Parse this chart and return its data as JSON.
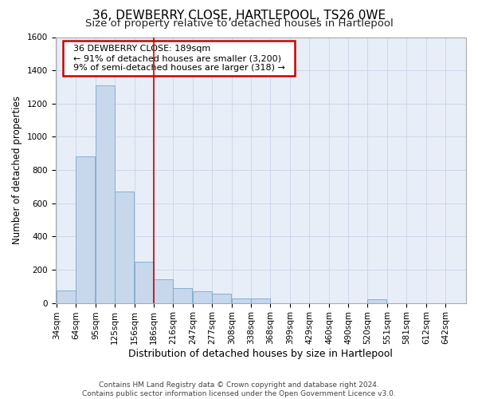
{
  "title": "36, DEWBERRY CLOSE, HARTLEPOOL, TS26 0WE",
  "subtitle": "Size of property relative to detached houses in Hartlepool",
  "xlabel": "Distribution of detached houses by size in Hartlepool",
  "ylabel": "Number of detached properties",
  "footer_line1": "Contains HM Land Registry data © Crown copyright and database right 2024.",
  "footer_line2": "Contains public sector information licensed under the Open Government Licence v3.0.",
  "annotation_line1": "36 DEWBERRY CLOSE: 189sqm",
  "annotation_line2": "← 91% of detached houses are smaller (3,200)",
  "annotation_line3": "9% of semi-detached houses are larger (318) →",
  "vline_x": 186,
  "vline_color": "#cc0000",
  "bar_color": "#c8d8ec",
  "bar_edge_color": "#7aa8cc",
  "bins_left": [
    34,
    64,
    95,
    125,
    156,
    186,
    216,
    247,
    277,
    308,
    338,
    368,
    399,
    429,
    460,
    490,
    520,
    551,
    581,
    612,
    642
  ],
  "bin_width": 30,
  "counts": [
    75,
    880,
    1310,
    670,
    250,
    140,
    90,
    70,
    55,
    25,
    25,
    0,
    0,
    0,
    0,
    0,
    20,
    0,
    0,
    0,
    0
  ],
  "ylim": [
    0,
    1600
  ],
  "yticks": [
    0,
    200,
    400,
    600,
    800,
    1000,
    1200,
    1400,
    1600
  ],
  "grid_color": "#c8d4e8",
  "bg_color": "#e8eef8",
  "annotation_box_facecolor": "#ffffff",
  "annotation_box_edgecolor": "#cc0000",
  "title_fontsize": 11,
  "subtitle_fontsize": 9.5,
  "ylabel_fontsize": 8.5,
  "xlabel_fontsize": 9,
  "tick_fontsize": 7.5,
  "annotation_fontsize": 8,
  "footer_fontsize": 6.5
}
